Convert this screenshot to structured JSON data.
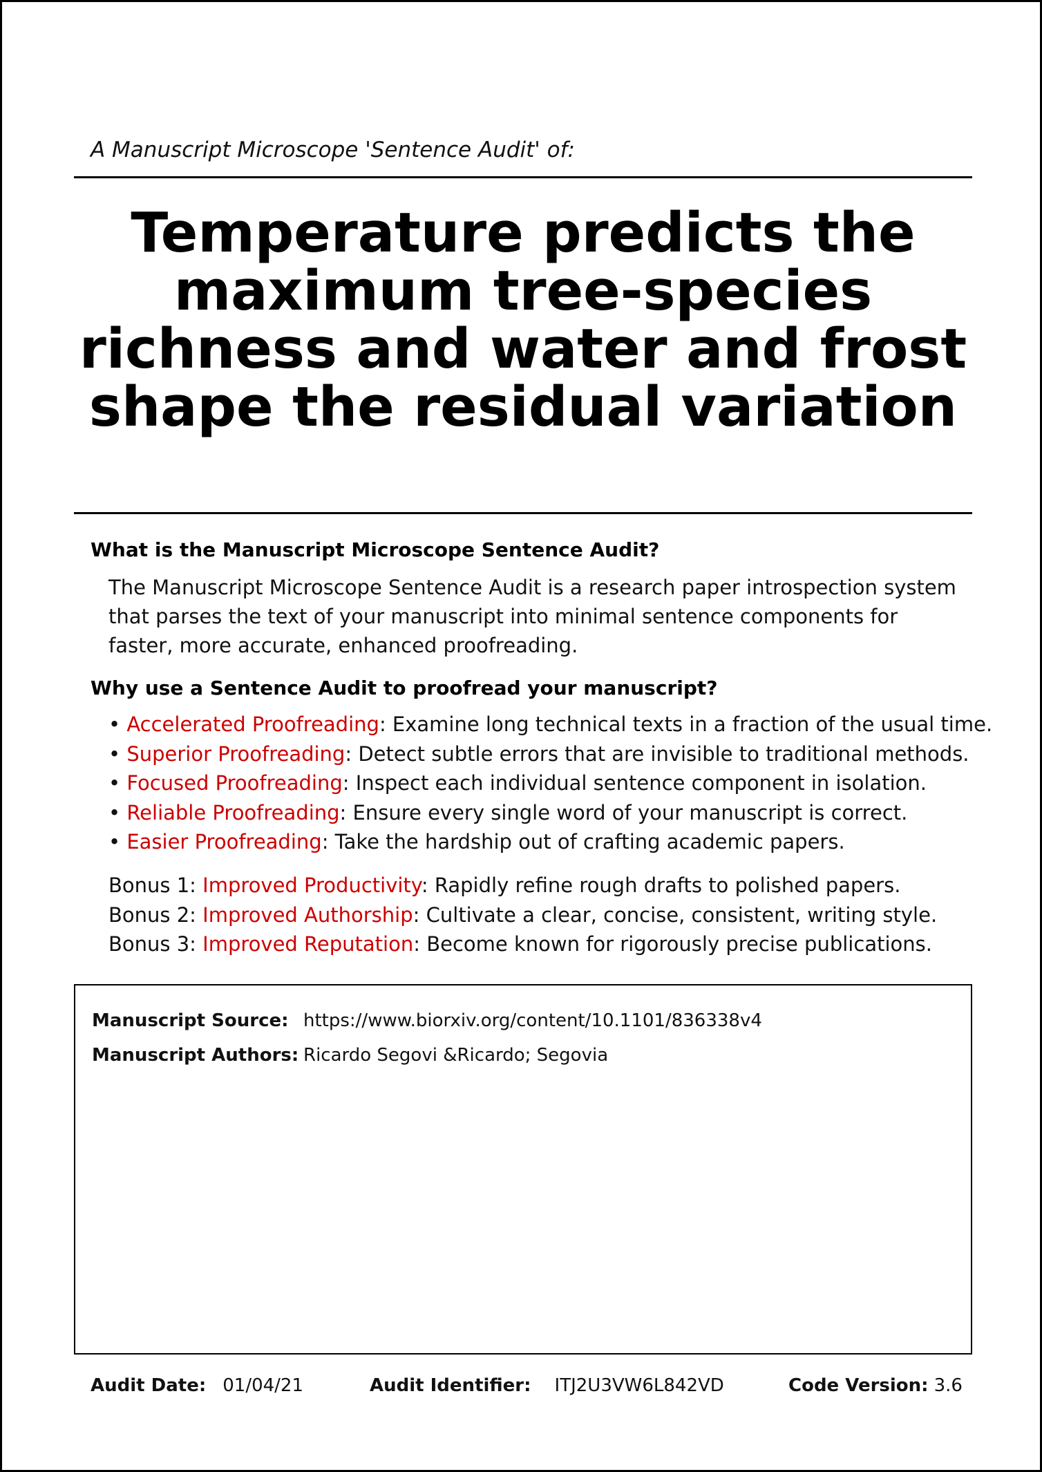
{
  "header": {
    "kicker": "A Manuscript Microscope 'Sentence Audit' of:",
    "title": "Temperature predicts the maximum tree-species richness and water and frost shape the residual variation"
  },
  "about": {
    "question": "What is the Manuscript Microscope Sentence Audit?",
    "answer": "The Manuscript Microscope Sentence Audit is a research paper introspection system that parses the text of your manuscript into minimal sentence components for faster, more accurate, enhanced proofreading."
  },
  "why": {
    "question": "Why use a Sentence Audit to proofread your manuscript?",
    "bullet_marker": "• ",
    "bullets": [
      {
        "term": "Accelerated Proofreading",
        "text": ": Examine long technical texts in a fraction of the usual time."
      },
      {
        "term": "Superior Proofreading",
        "text": ": Detect subtle errors that are invisible to traditional methods."
      },
      {
        "term": "Focused Proofreading",
        "text": ": Inspect each individual sentence component in isolation."
      },
      {
        "term": "Reliable Proofreading",
        "text": ": Ensure every single word of your manuscript is correct."
      },
      {
        "term": "Easier Proofreading",
        "text": ": Take the hardship out of crafting academic papers."
      }
    ],
    "bonuses": [
      {
        "prefix": "Bonus 1: ",
        "term": "Improved Productivity",
        "text": ": Rapidly refine rough drafts to polished papers."
      },
      {
        "prefix": "Bonus 2: ",
        "term": "Improved Authorship",
        "text": ": Cultivate a clear, concise, consistent, writing style."
      },
      {
        "prefix": "Bonus 3: ",
        "term": "Improved Reputation",
        "text": ": Become known for rigorously precise publications."
      }
    ]
  },
  "manuscript": {
    "source_label": "Manuscript Source:",
    "source_value": "https://www.biorxiv.org/content/10.1101/836338v4",
    "authors_label": "Manuscript Authors:",
    "authors_value": "Ricardo Segovi &Ricardo; Segovia"
  },
  "footer": {
    "date_label": "Audit Date:",
    "date_value": "01/04/21",
    "id_label": "Audit Identifier:",
    "id_value": "ITJ2U3VW6L842VD",
    "version_label": "Code Version:",
    "version_value": "3.6"
  },
  "colors": {
    "accent": "#cc0000",
    "text": "#111111",
    "rule": "#000000"
  }
}
